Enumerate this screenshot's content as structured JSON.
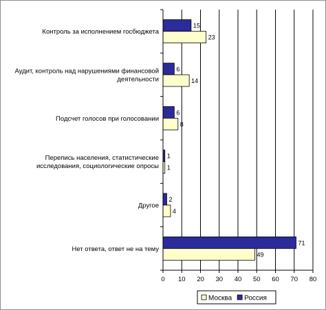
{
  "chart_data": {
    "type": "bar",
    "orientation": "horizontal",
    "categories": [
      [
        "Контроль за исполнением госбюджета"
      ],
      [
        "Аудит, контроль над нарушениями финансовой",
        "деятельности"
      ],
      [
        "Подсчет голосов при голосовании"
      ],
      [
        "Перепись населения, статистические",
        "исследования, социологические опросы"
      ],
      [
        "Другое"
      ],
      [
        "Нет ответа, ответ не на тему"
      ]
    ],
    "series": [
      {
        "name": "Россия",
        "color": "#2b2b9a",
        "values": [
          15,
          6,
          6,
          1,
          2,
          71
        ]
      },
      {
        "name": "Москва",
        "color": "#ffffcc",
        "values": [
          23,
          14,
          8,
          1,
          4,
          49
        ]
      }
    ],
    "xlim": [
      0,
      80
    ],
    "xticks": [
      0,
      10,
      20,
      30,
      40,
      50,
      60,
      70,
      80
    ],
    "grid": "vertical",
    "legend": {
      "position": "bottom-center",
      "order": [
        "Москва",
        "Россия"
      ]
    }
  }
}
